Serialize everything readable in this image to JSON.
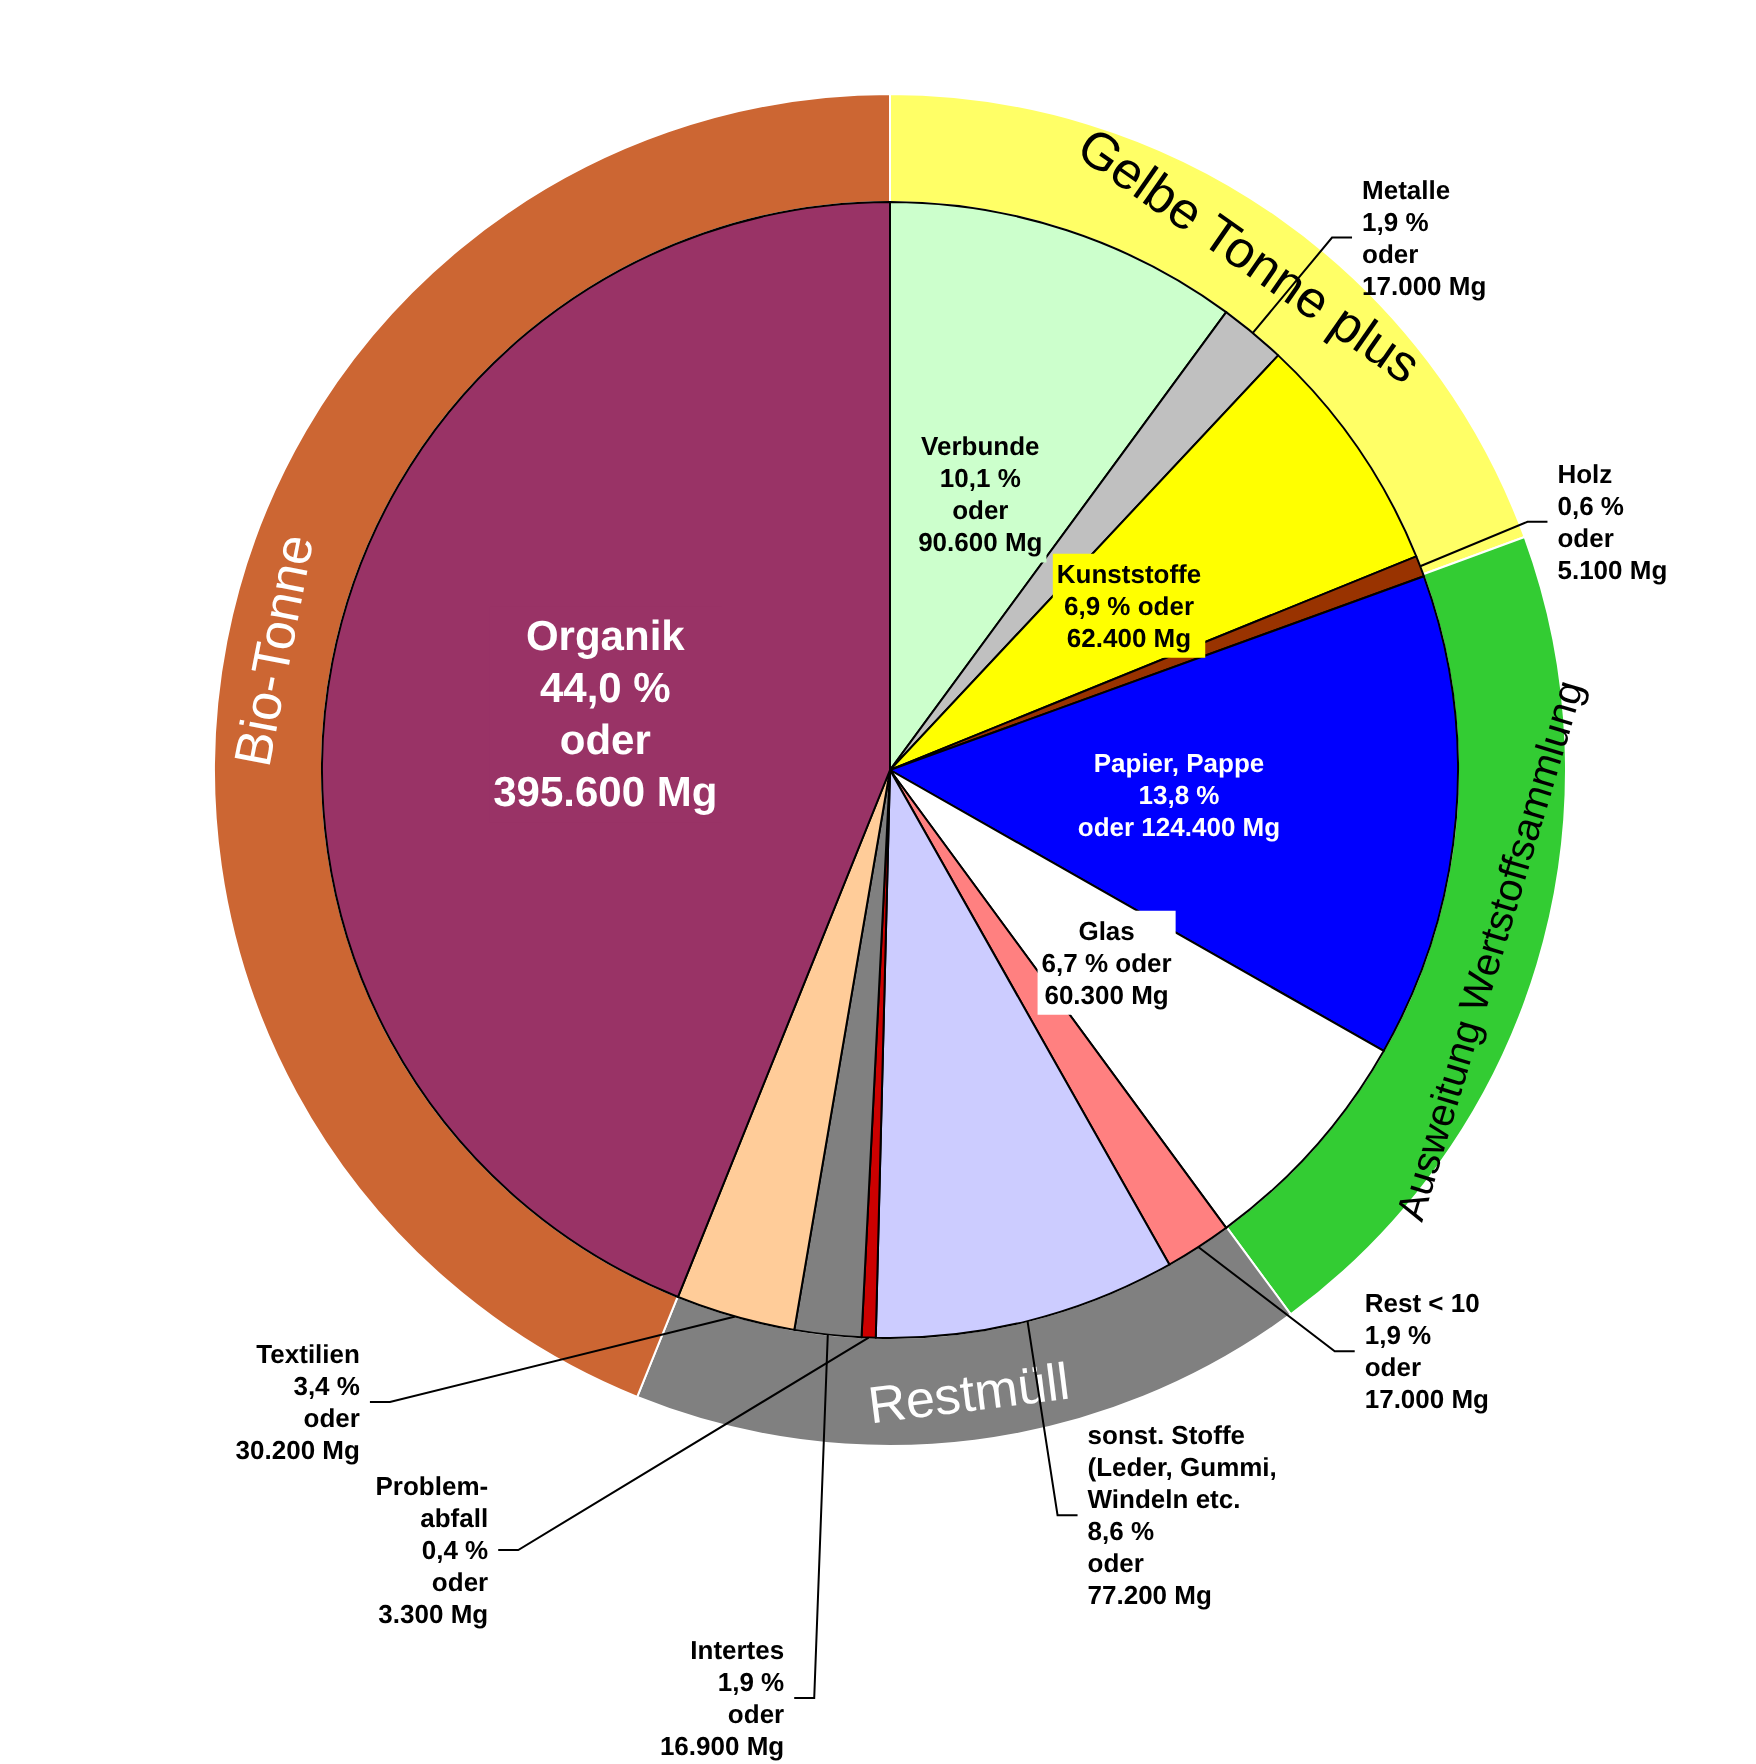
{
  "chart_data": [
    {
      "type": "pie",
      "categories": [
        "Verbunde",
        "Metalle",
        "Kunststoffe",
        "Holz",
        "Papier, Pappe",
        "Glas",
        "Rest < 10",
        "sonst. Stoffe\n(Leder, Gummi,\nWindeln etc.",
        "Problem-\nabfall",
        "Intertes",
        "Textilien",
        "Organik"
      ],
      "values": [
        10.1,
        1.9,
        6.9,
        0.6,
        13.8,
        6.7,
        1.9,
        8.6,
        0.4,
        1.9,
        3.4,
        44.0
      ],
      "value_labels": [
        "10,1 %\noder\n90.600 Mg",
        "1,9 %\noder\n17.000 Mg",
        "6,9 % oder\n62.400 Mg",
        "0,6 %\noder\n5.100 Mg",
        "13,8 %\noder 124.400 Mg",
        "6,7 % oder\n60.300 Mg",
        "1,9 %\noder\n17.000 Mg",
        "8,6 %\noder\n77.200 Mg",
        "0,4 %\noder\n3.300 Mg",
        "1,9 %\noder\n16.900 Mg",
        "3,4 %\noder\n30.200 Mg",
        "44,0 %\noder\n395.600 Mg"
      ],
      "colors": [
        "#ccffcc",
        "#c0c0c0",
        "#ffff00",
        "#993300",
        "#0000ff",
        "#ffffff",
        "#ff8080",
        "#ccccff",
        "#cc0000",
        "#808080",
        "#ffcc99",
        "#993366"
      ]
    },
    {
      "type": "donut",
      "categories": [
        "Gelbe Tonne plus",
        "Ausweitung Wertstoffsammlung",
        "Restmüll",
        "Bio-Tonne"
      ],
      "values": [
        19.4,
        20.5,
        16.2,
        43.9
      ],
      "colors": [
        "#ffff66",
        "#33cc33",
        "#808080",
        "#cc6633"
      ]
    }
  ]
}
